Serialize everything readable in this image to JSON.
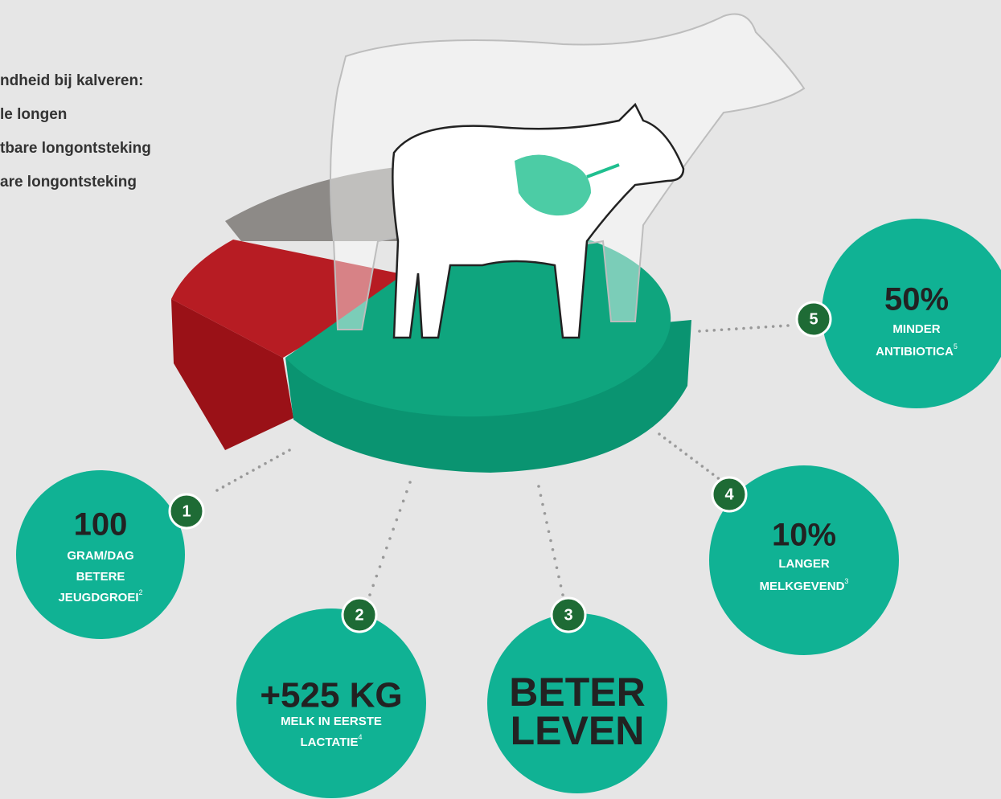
{
  "legend": {
    "title": "ndheid bij kalveren:",
    "items": [
      "le longen",
      "tbare longontsteking",
      "are longontsteking"
    ]
  },
  "benefits": [
    {
      "number": "1",
      "headline": [
        "100"
      ],
      "lines": [
        "GRAM/DAG",
        "BETERE",
        "JEUGDGROEI"
      ],
      "note": "2"
    },
    {
      "number": "2",
      "headline": [
        "+525 KG"
      ],
      "lines": [
        "MELK IN EERSTE",
        "LACTATIE"
      ],
      "note": "4"
    },
    {
      "number": "3",
      "headline": [
        "BETER",
        "LEVEN"
      ],
      "lines": [],
      "note": null
    },
    {
      "number": "4",
      "headline": [
        "10%"
      ],
      "lines": [
        "LANGER",
        "MELKGEVEND"
      ],
      "note": "3"
    },
    {
      "number": "5",
      "headline": [
        "50%"
      ],
      "lines": [
        "MINDER",
        "ANTIBIOTICA"
      ],
      "note": "5"
    }
  ]
}
